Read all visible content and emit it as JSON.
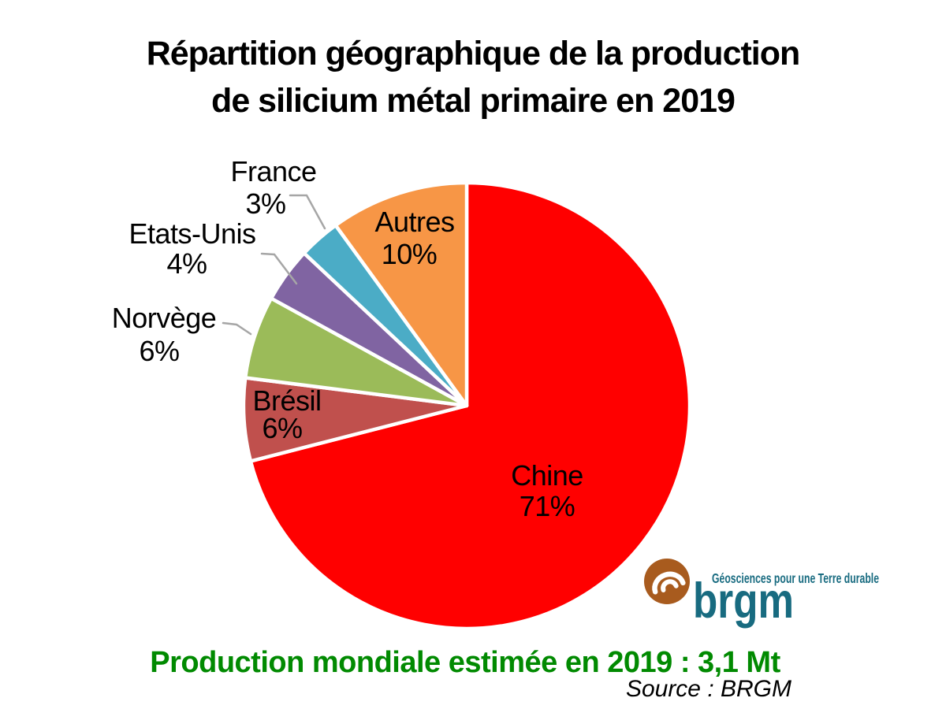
{
  "title": {
    "line1": "Répartition géographique de la production",
    "line2": "de silicium métal primaire en 2019"
  },
  "chart_data": {
    "type": "pie",
    "title": "Répartition géographique de la production de silicium métal primaire en 2019",
    "start_angle_deg": 0,
    "direction": "clockwise",
    "slices": [
      {
        "label": "Chine",
        "value_pct": 71,
        "color": "#FF0000",
        "label_placement": "inside"
      },
      {
        "label": "Brésil",
        "value_pct": 6,
        "color": "#C0504D",
        "label_placement": "inside"
      },
      {
        "label": "Norvège",
        "value_pct": 6,
        "color": "#9BBB59",
        "label_placement": "outside"
      },
      {
        "label": "Etats-Unis",
        "value_pct": 4,
        "color": "#8064A2",
        "label_placement": "outside"
      },
      {
        "label": "France",
        "value_pct": 3,
        "color": "#4BACC6",
        "label_placement": "outside"
      },
      {
        "label": "Autres",
        "value_pct": 10,
        "color": "#F79646",
        "label_placement": "inside"
      }
    ],
    "slice_border_color": "#FFFFFF",
    "leader_line_color": "#A6A6A6",
    "label_color": "#000000",
    "annotation": "Production mondiale estimée en 2019 : 3,1 Mt",
    "source": "Source : BRGM"
  },
  "footer": {
    "production_note": "Production mondiale estimée en 2019 : 3,1 Mt",
    "production_note_color": "#018A01",
    "source": "Source : BRGM"
  },
  "logo": {
    "brand": "brgm",
    "tagline": "Géosciences pour une Terre durable",
    "brand_color": "#186B80",
    "icon_color": "#A85B1E"
  }
}
